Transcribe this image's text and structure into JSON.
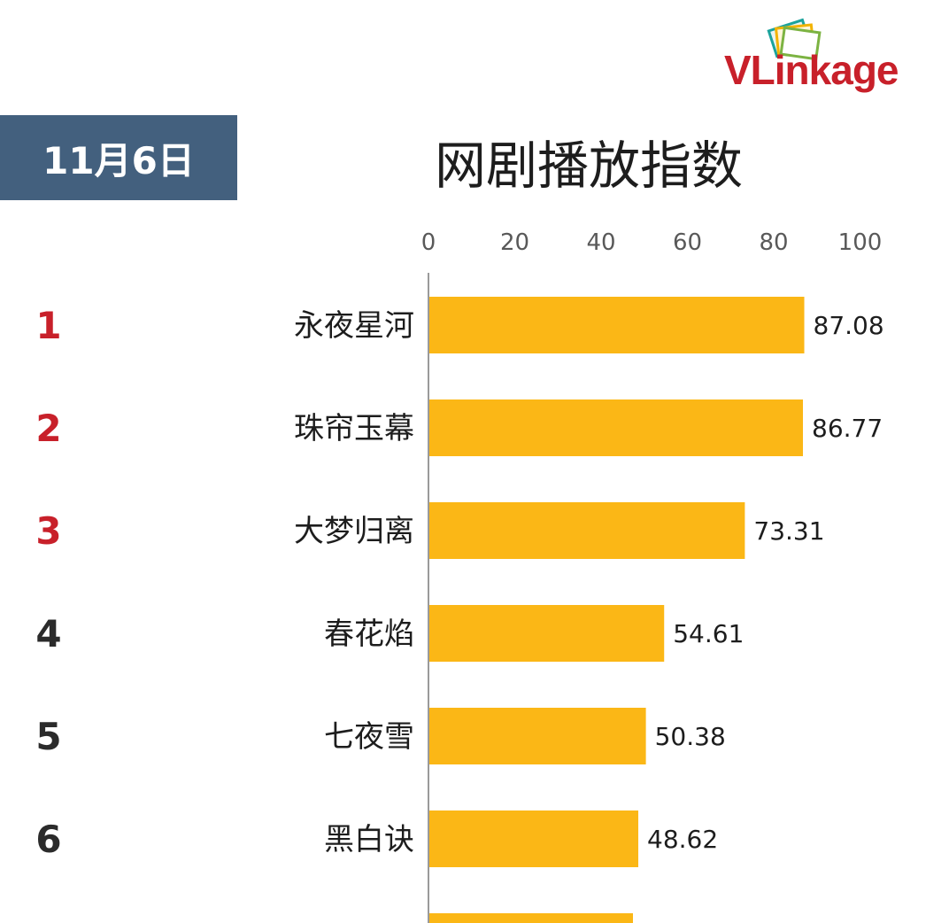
{
  "logo": {
    "text": "VLinkage"
  },
  "date": "11月6日",
  "chart_data": {
    "type": "bar",
    "orientation": "horizontal",
    "title": "网剧播放指数",
    "xlim": [
      0,
      100
    ],
    "xticks": [
      0,
      20,
      40,
      60,
      80,
      100
    ],
    "ranks": [
      "1",
      "2",
      "3",
      "4",
      "5",
      "6"
    ],
    "categories": [
      "永夜星河",
      "珠帘玉幕",
      "大梦归离",
      "春花焰",
      "七夜雪",
      "黑白诀"
    ],
    "values": [
      87.08,
      86.77,
      73.31,
      54.61,
      50.38,
      48.62
    ],
    "value_labels": [
      "87.08",
      "86.77",
      "73.31",
      "54.61",
      "50.38",
      "48.62"
    ],
    "bar_color": "#fbb716",
    "top_rank_color": "#c8202a",
    "rank_color": "#2b2b2b",
    "axis_color": "#9a9a9a",
    "grid": false,
    "legend": "none"
  }
}
